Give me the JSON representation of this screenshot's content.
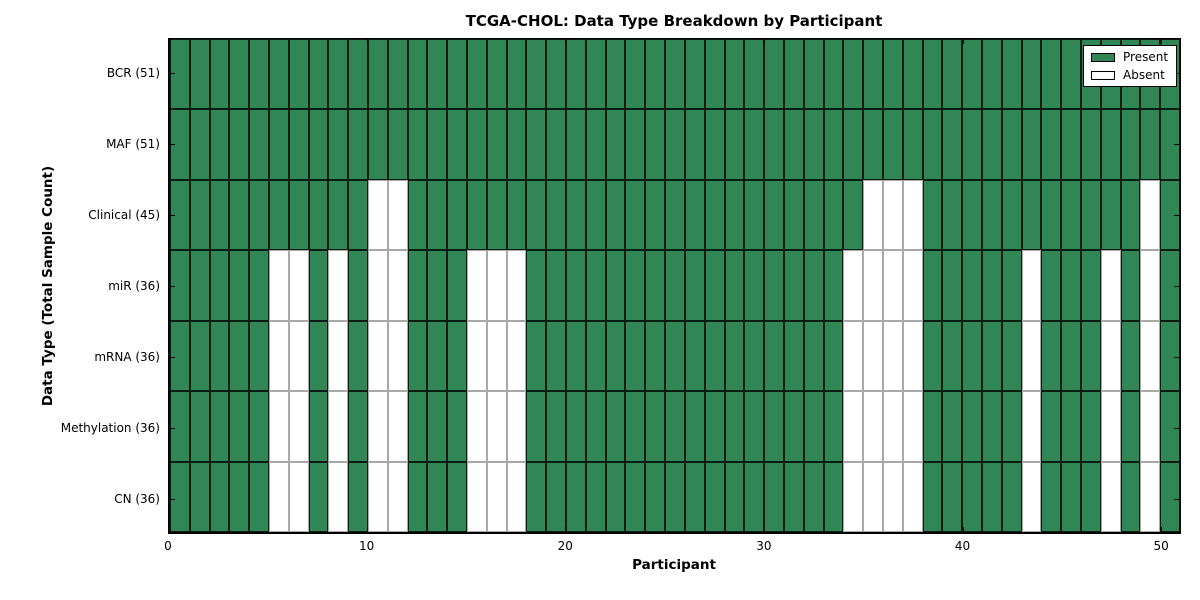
{
  "chart_data": {
    "type": "heatmap",
    "title": "TCGA-CHOL: Data Type Breakdown by Participant",
    "xlabel": "Participant",
    "ylabel": "Data Type (Total Sample Count)",
    "n_participants": 51,
    "x_ticks": [
      0,
      10,
      20,
      30,
      40,
      50
    ],
    "xlim": [
      0,
      51
    ],
    "grid": "cell-borders",
    "legend_position": "upper right",
    "legend": [
      {
        "label": "Present",
        "color": "#318656"
      },
      {
        "label": "Absent",
        "color": "#ffffff"
      }
    ],
    "colors": {
      "present_fill": "#318656",
      "absent_fill": "#ffffff",
      "present_edge": "#143322",
      "absent_edge": "#a8a8a8",
      "axis": "#000000"
    },
    "rows": [
      {
        "label": "BCR (51)",
        "total": 51,
        "absent_participants": []
      },
      {
        "label": "MAF (51)",
        "total": 51,
        "absent_participants": []
      },
      {
        "label": "Clinical (45)",
        "total": 45,
        "absent_participants": [
          10,
          11,
          35,
          36,
          37,
          49
        ]
      },
      {
        "label": "miR (36)",
        "total": 36,
        "absent_participants": [
          5,
          6,
          8,
          10,
          11,
          15,
          16,
          17,
          34,
          35,
          36,
          37,
          43,
          47,
          49
        ]
      },
      {
        "label": "mRNA (36)",
        "total": 36,
        "absent_participants": [
          5,
          6,
          8,
          10,
          11,
          15,
          16,
          17,
          34,
          35,
          36,
          37,
          43,
          47,
          49
        ]
      },
      {
        "label": "Methylation (36)",
        "total": 36,
        "absent_participants": [
          5,
          6,
          8,
          10,
          11,
          15,
          16,
          17,
          34,
          35,
          36,
          37,
          43,
          47,
          49
        ]
      },
      {
        "label": "CN (36)",
        "total": 36,
        "absent_participants": [
          5,
          6,
          8,
          10,
          11,
          15,
          16,
          17,
          34,
          35,
          36,
          37,
          43,
          47,
          49
        ]
      }
    ]
  }
}
